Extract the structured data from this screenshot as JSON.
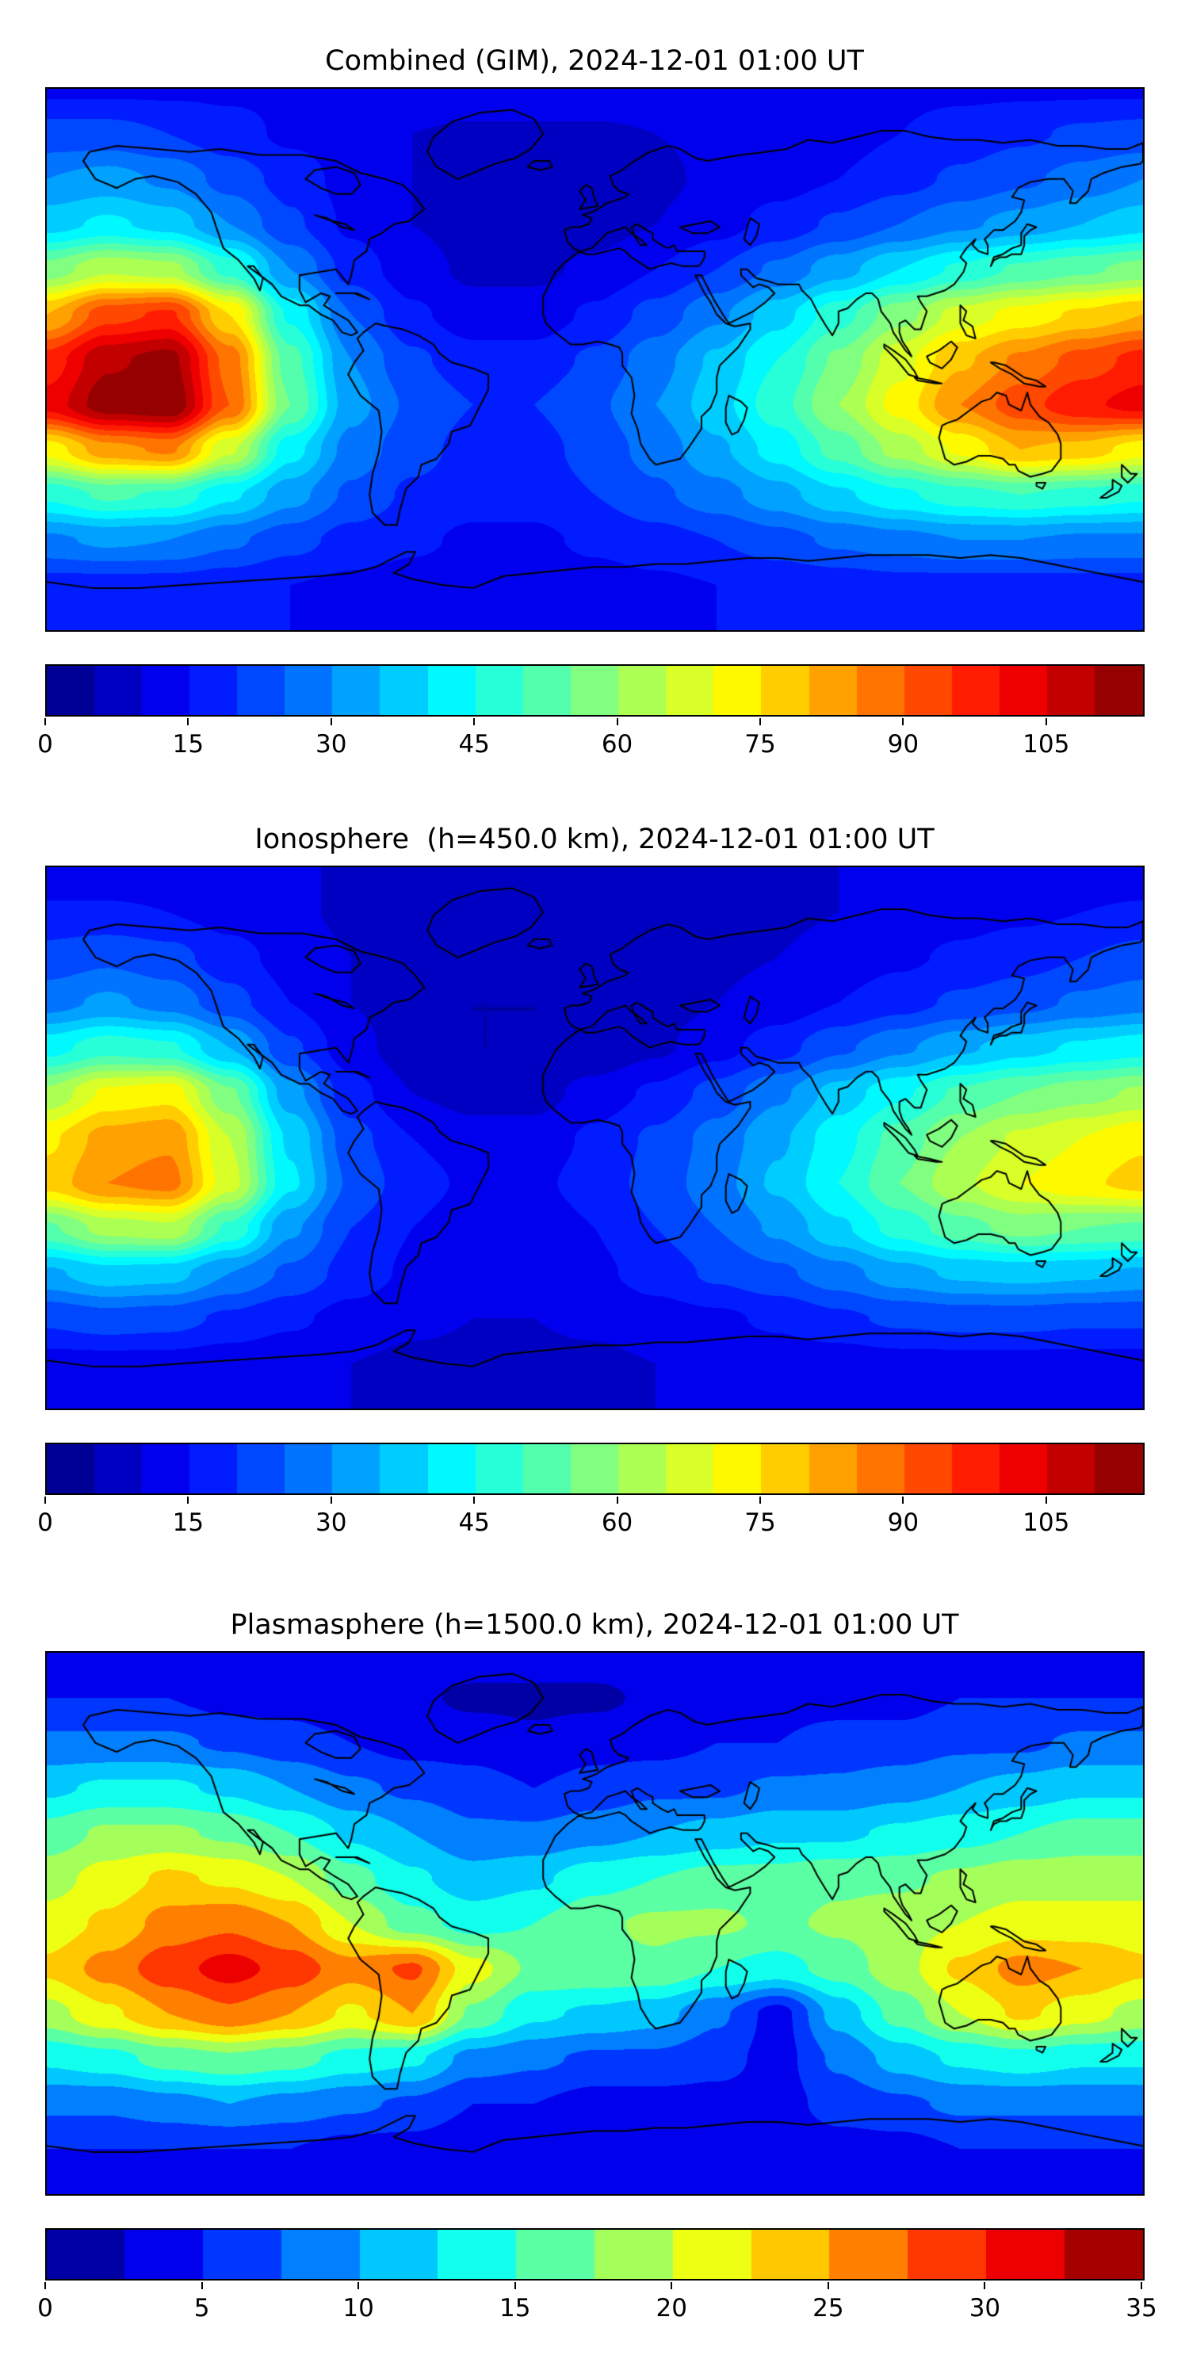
{
  "style": {
    "background": "#ffffff",
    "coastline_color": "#000000",
    "border_color": "#000000",
    "colormap": "jet"
  },
  "chart_data": [
    {
      "type": "heatmap",
      "title": "Combined (GIM), 2024-12-01 01:00 UT",
      "projection": "equirectangular",
      "lon_range": [
        -180,
        180
      ],
      "lat_range": [
        -90,
        90
      ],
      "colormap": "jet",
      "vmin": 0,
      "vmax": 115,
      "level_step": 5,
      "colorbar_position": "bottom",
      "colorbar_ticks": [
        0,
        15,
        30,
        45,
        60,
        75,
        90,
        105
      ],
      "grid_lon": [
        -180,
        -160,
        -140,
        -120,
        -100,
        -80,
        -60,
        -40,
        -20,
        0,
        20,
        40,
        60,
        80,
        100,
        120,
        140,
        160,
        180
      ],
      "grid_lat": [
        90,
        75,
        60,
        45,
        30,
        15,
        0,
        -15,
        -30,
        -45,
        -60,
        -75,
        -90
      ],
      "values": [
        [
          14,
          14,
          14,
          14,
          14,
          14,
          14,
          14,
          14,
          14,
          14,
          14,
          14,
          14,
          14,
          14,
          14,
          14,
          14
        ],
        [
          22,
          22,
          20,
          17,
          14,
          12,
          10,
          9,
          9,
          9,
          10,
          11,
          12,
          13,
          15,
          17,
          19,
          21,
          22
        ],
        [
          30,
          32,
          29,
          23,
          18,
          13,
          10,
          8,
          8,
          8,
          9,
          11,
          13,
          15,
          18,
          21,
          24,
          27,
          30
        ],
        [
          38,
          41,
          38,
          30,
          21,
          14,
          10,
          8,
          7,
          8,
          10,
          13,
          17,
          21,
          25,
          29,
          32,
          35,
          38
        ],
        [
          57,
          64,
          62,
          48,
          30,
          18,
          12,
          9,
          9,
          11,
          15,
          20,
          26,
          33,
          40,
          46,
          51,
          54,
          57
        ],
        [
          80,
          93,
          96,
          75,
          44,
          25,
          16,
          12,
          12,
          16,
          22,
          29,
          38,
          48,
          58,
          67,
          72,
          76,
          80
        ],
        [
          97,
          109,
          112,
          88,
          52,
          30,
          21,
          17,
          17,
          21,
          28,
          36,
          45,
          56,
          68,
          79,
          86,
          92,
          97
        ],
        [
          102,
          113,
          115,
          90,
          55,
          32,
          24,
          20,
          20,
          24,
          30,
          38,
          48,
          60,
          72,
          85,
          93,
          99,
          102
        ],
        [
          72,
          83,
          86,
          66,
          42,
          28,
          22,
          18,
          18,
          22,
          27,
          34,
          42,
          52,
          62,
          71,
          80,
          78,
          72
        ],
        [
          46,
          51,
          49,
          41,
          32,
          24,
          19,
          17,
          17,
          20,
          24,
          28,
          33,
          39,
          44,
          48,
          50,
          48,
          46
        ],
        [
          29,
          31,
          30,
          26,
          22,
          18,
          16,
          14,
          14,
          16,
          18,
          20,
          23,
          26,
          28,
          30,
          30,
          29,
          29
        ],
        [
          18,
          18,
          18,
          17,
          15,
          14,
          13,
          12,
          12,
          13,
          14,
          15,
          16,
          17,
          18,
          18,
          18,
          18,
          18
        ],
        [
          15,
          15,
          15,
          15,
          15,
          15,
          15,
          15,
          15,
          15,
          15,
          15,
          15,
          15,
          15,
          15,
          15,
          15,
          15
        ]
      ]
    },
    {
      "type": "heatmap",
      "title": "Ionosphere  (h=450.0 km), 2024-12-01 01:00 UT",
      "projection": "equirectangular",
      "lon_range": [
        -180,
        180
      ],
      "lat_range": [
        -90,
        90
      ],
      "colormap": "jet",
      "vmin": 0,
      "vmax": 115,
      "level_step": 5,
      "colorbar_position": "bottom",
      "colorbar_ticks": [
        0,
        15,
        30,
        45,
        60,
        75,
        90,
        105
      ],
      "grid_lon": [
        -180,
        -160,
        -140,
        -120,
        -100,
        -80,
        -60,
        -40,
        -20,
        0,
        20,
        40,
        60,
        80,
        100,
        120,
        140,
        160,
        180
      ],
      "grid_lat": [
        90,
        75,
        60,
        45,
        30,
        15,
        0,
        -15,
        -30,
        -45,
        -60,
        -75,
        -90
      ],
      "values": [
        [
          10,
          10,
          10,
          10,
          10,
          10,
          10,
          10,
          10,
          10,
          10,
          10,
          10,
          10,
          10,
          10,
          10,
          10,
          10
        ],
        [
          16,
          16,
          15,
          13,
          11,
          9,
          8,
          7,
          7,
          7,
          8,
          9,
          9,
          10,
          11,
          13,
          14,
          15,
          16
        ],
        [
          22,
          24,
          22,
          17,
          13,
          10,
          8,
          7,
          6,
          7,
          8,
          9,
          10,
          12,
          14,
          16,
          18,
          20,
          22
        ],
        [
          28,
          31,
          28,
          22,
          15,
          10,
          7,
          5,
          5,
          6,
          8,
          10,
          12,
          15,
          18,
          21,
          23,
          26,
          28
        ],
        [
          43,
          48,
          46,
          35,
          21,
          12,
          7,
          5,
          5,
          6,
          9,
          13,
          18,
          24,
          29,
          34,
          38,
          41,
          43
        ],
        [
          61,
          71,
          73,
          56,
          32,
          17,
          10,
          8,
          8,
          12,
          16,
          22,
          29,
          37,
          44,
          51,
          55,
          58,
          61
        ],
        [
          74,
          82,
          84,
          65,
          39,
          22,
          15,
          12,
          12,
          16,
          21,
          27,
          34,
          43,
          52,
          60,
          66,
          70,
          74
        ],
        [
          77,
          85,
          87,
          67,
          41,
          24,
          17,
          14,
          14,
          17,
          22,
          28,
          36,
          45,
          55,
          64,
          70,
          74,
          77
        ],
        [
          54,
          62,
          64,
          49,
          31,
          20,
          15,
          12,
          12,
          15,
          20,
          25,
          31,
          39,
          47,
          53,
          57,
          55,
          54
        ],
        [
          34,
          38,
          37,
          30,
          24,
          18,
          14,
          12,
          12,
          14,
          17,
          21,
          24,
          28,
          33,
          36,
          37,
          36,
          34
        ],
        [
          21,
          23,
          22,
          19,
          16,
          13,
          11,
          10,
          10,
          11,
          13,
          14,
          16,
          19,
          21,
          22,
          22,
          21,
          21
        ],
        [
          13,
          13,
          13,
          12,
          11,
          10,
          9,
          9,
          9,
          9,
          10,
          11,
          12,
          12,
          13,
          13,
          13,
          13,
          13
        ],
        [
          10,
          10,
          10,
          10,
          10,
          10,
          10,
          10,
          10,
          10,
          10,
          10,
          10,
          10,
          10,
          10,
          10,
          10,
          10
        ]
      ]
    },
    {
      "type": "heatmap",
      "title": "Plasmasphere (h=1500.0 km), 2024-12-01 01:00 UT",
      "projection": "equirectangular",
      "lon_range": [
        -180,
        180
      ],
      "lat_range": [
        -90,
        90
      ],
      "colormap": "jet",
      "vmin": 0,
      "vmax": 35,
      "level_step": 2.5,
      "colorbar_position": "bottom",
      "colorbar_ticks": [
        0,
        5,
        10,
        15,
        20,
        25,
        30,
        35
      ],
      "grid_lon": [
        -180,
        -160,
        -140,
        -120,
        -100,
        -80,
        -60,
        -40,
        -20,
        0,
        20,
        40,
        60,
        80,
        100,
        120,
        140,
        160,
        180
      ],
      "grid_lat": [
        90,
        75,
        60,
        45,
        30,
        15,
        0,
        -15,
        -30,
        -45,
        -60,
        -75,
        -90
      ],
      "values": [
        [
          4,
          4,
          4,
          4,
          4,
          4,
          4,
          4,
          4,
          4,
          4,
          4,
          4,
          4,
          4,
          4,
          4,
          4,
          4
        ],
        [
          5,
          5,
          5,
          4,
          4,
          3,
          3,
          2,
          2,
          2,
          3,
          3,
          4,
          4,
          4,
          5,
          5,
          5,
          5
        ],
        [
          8,
          8,
          8,
          7,
          6,
          5,
          4,
          4,
          3,
          4,
          4,
          5,
          5,
          6,
          6,
          7,
          7,
          8,
          8
        ],
        [
          12,
          13,
          13,
          12,
          10,
          8,
          7,
          6,
          5,
          6,
          7,
          7,
          8,
          8,
          9,
          10,
          11,
          12,
          12
        ],
        [
          16,
          18,
          18,
          17,
          15,
          12,
          10,
          8,
          8,
          9,
          10,
          11,
          12,
          12,
          13,
          14,
          15,
          16,
          16
        ],
        [
          19,
          21,
          23,
          22,
          20,
          16,
          13,
          11,
          12,
          14,
          15,
          16,
          16,
          17,
          17,
          18,
          19,
          19,
          19
        ],
        [
          21,
          23,
          26,
          27,
          25,
          20,
          16,
          14,
          15,
          17,
          18,
          18,
          17,
          18,
          19,
          20,
          21,
          21,
          21
        ],
        [
          23,
          26,
          29,
          31,
          29,
          26,
          28,
          21,
          17,
          17,
          17,
          15,
          14,
          16,
          19,
          23,
          26,
          25,
          23
        ],
        [
          19,
          22,
          25,
          27,
          25,
          22,
          25,
          17,
          13,
          12,
          11,
          8,
          4,
          11,
          16,
          20,
          23,
          21,
          19
        ],
        [
          13,
          14,
          16,
          17,
          16,
          14,
          13,
          9,
          8,
          7,
          7,
          6,
          4,
          8,
          11,
          13,
          14,
          13,
          13
        ],
        [
          8,
          8,
          9,
          10,
          9,
          8,
          7,
          5,
          5,
          4,
          4,
          4,
          4,
          6,
          7,
          8,
          8,
          8,
          8
        ],
        [
          5,
          5,
          5,
          5,
          5,
          4,
          4,
          3,
          3,
          3,
          3,
          3,
          3,
          4,
          4,
          5,
          5,
          5,
          5
        ],
        [
          3,
          3,
          3,
          3,
          3,
          3,
          3,
          3,
          3,
          3,
          3,
          3,
          3,
          3,
          3,
          3,
          3,
          3,
          3
        ]
      ]
    }
  ]
}
